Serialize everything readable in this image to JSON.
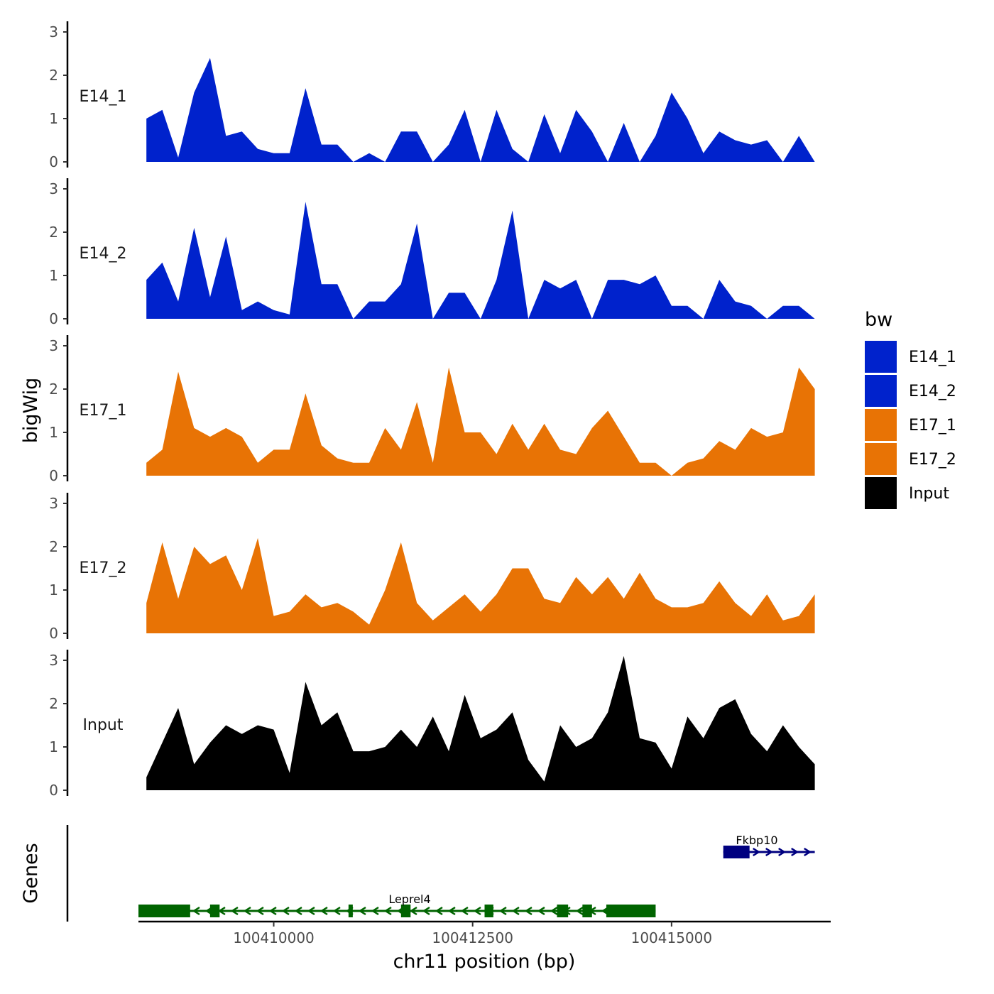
{
  "chart_data": {
    "type": "area",
    "title": "",
    "xlabel": "chr11 position (bp)",
    "ylabel": "bigWig",
    "xlim": [
      100408300,
      100417000
    ],
    "ylim": [
      0,
      3
    ],
    "x_ticks": [
      100410000,
      100412500,
      100415000
    ],
    "x_tick_labels": [
      "100410000",
      "100412500",
      "100415000"
    ],
    "y_ticks": [
      0,
      1,
      2,
      3
    ],
    "y_tick_labels": [
      "0",
      "1",
      "2",
      "3"
    ],
    "grid": false,
    "legend": {
      "title": "bw",
      "position": "right",
      "entries": [
        {
          "label": "E14_1",
          "color": "#0022cc"
        },
        {
          "label": "E14_2",
          "color": "#0022cc"
        },
        {
          "label": "E17_1",
          "color": "#e87305"
        },
        {
          "label": "E17_2",
          "color": "#e87305"
        },
        {
          "label": "Input",
          "color": "#000000"
        }
      ]
    },
    "x": [
      100408400,
      100408600,
      100408800,
      100409000,
      100409200,
      100409400,
      100409600,
      100409800,
      100410000,
      100410200,
      100410400,
      100410600,
      100410800,
      100411000,
      100411200,
      100411400,
      100411600,
      100411800,
      100412000,
      100412200,
      100412400,
      100412600,
      100412800,
      100413000,
      100413200,
      100413400,
      100413600,
      100413800,
      100414000,
      100414200,
      100414400,
      100414600,
      100414800,
      100415000,
      100415200,
      100415400,
      100415600,
      100415800,
      100416000,
      100416200,
      100416400,
      100416600,
      100416800
    ],
    "series": [
      {
        "name": "E14_1",
        "color": "#0022cc",
        "values": [
          1.0,
          1.2,
          0.1,
          1.6,
          2.4,
          0.6,
          0.7,
          0.3,
          0.2,
          0.2,
          1.7,
          0.4,
          0.4,
          0.0,
          0.2,
          0.0,
          0.7,
          0.7,
          0.0,
          0.4,
          1.2,
          0.0,
          1.2,
          0.3,
          0.0,
          1.1,
          0.2,
          1.2,
          0.7,
          0.0,
          0.9,
          0.0,
          0.6,
          1.6,
          1.0,
          0.2,
          0.7,
          0.5,
          0.4,
          0.5,
          0.0,
          0.6,
          0.0
        ]
      },
      {
        "name": "E14_2",
        "color": "#0022cc",
        "values": [
          0.9,
          1.3,
          0.4,
          2.1,
          0.5,
          1.9,
          0.2,
          0.4,
          0.2,
          0.1,
          2.7,
          0.8,
          0.8,
          0.0,
          0.4,
          0.4,
          0.8,
          2.2,
          0.0,
          0.6,
          0.6,
          0.0,
          0.9,
          2.5,
          0.0,
          0.9,
          0.7,
          0.9,
          0.0,
          0.9,
          0.9,
          0.8,
          1.0,
          0.3,
          0.3,
          0.0,
          0.9,
          0.4,
          0.3,
          0.0,
          0.3,
          0.3,
          0.0
        ]
      },
      {
        "name": "E17_1",
        "color": "#e87305",
        "values": [
          0.3,
          0.6,
          2.4,
          1.1,
          0.9,
          1.1,
          0.9,
          0.3,
          0.6,
          0.6,
          1.9,
          0.7,
          0.4,
          0.3,
          0.3,
          1.1,
          0.6,
          1.7,
          0.3,
          2.5,
          1.0,
          1.0,
          0.5,
          1.2,
          0.6,
          1.2,
          0.6,
          0.5,
          1.1,
          1.5,
          0.9,
          0.3,
          0.3,
          0.0,
          0.3,
          0.4,
          0.8,
          0.6,
          1.1,
          0.9,
          1.0,
          2.5,
          2.0
        ]
      },
      {
        "name": "E17_2",
        "color": "#e87305",
        "values": [
          0.7,
          2.1,
          0.8,
          2.0,
          1.6,
          1.8,
          1.0,
          2.2,
          0.4,
          0.5,
          0.9,
          0.6,
          0.7,
          0.5,
          0.2,
          1.0,
          2.1,
          0.7,
          0.3,
          0.6,
          0.9,
          0.5,
          0.9,
          1.5,
          1.5,
          0.8,
          0.7,
          1.3,
          0.9,
          1.3,
          0.8,
          1.4,
          0.8,
          0.6,
          0.6,
          0.7,
          1.2,
          0.7,
          0.4,
          0.9,
          0.3,
          0.4,
          0.9
        ]
      },
      {
        "name": "Input",
        "color": "#000000",
        "values": [
          0.3,
          1.1,
          1.9,
          0.6,
          1.1,
          1.5,
          1.3,
          1.5,
          1.4,
          0.4,
          2.5,
          1.5,
          1.8,
          0.9,
          0.9,
          1.0,
          1.4,
          1.0,
          1.7,
          0.9,
          2.2,
          1.2,
          1.4,
          1.8,
          0.7,
          0.2,
          1.5,
          1.0,
          1.2,
          1.8,
          3.1,
          1.2,
          1.1,
          0.5,
          1.7,
          1.2,
          1.9,
          2.1,
          1.3,
          0.9,
          1.5,
          1.0,
          0.6
        ]
      }
    ],
    "genes": [
      {
        "name": "Leprel4",
        "start": 100408300,
        "end": 100414800,
        "strand": "-",
        "color": "#006400",
        "exons": [
          [
            100408300,
            100408950
          ],
          [
            100409200,
            100409320
          ],
          [
            100410940,
            100410990
          ],
          [
            100411600,
            100411720
          ],
          [
            100412650,
            100412760
          ],
          [
            100413560,
            100413700
          ],
          [
            100413880,
            100414000
          ],
          [
            100414180,
            100414800
          ]
        ]
      },
      {
        "name": "Fkbp10",
        "start": 100415650,
        "end": 100416800,
        "strand": "+",
        "color": "#000080",
        "exons": [
          [
            100415650,
            100415980
          ]
        ]
      }
    ],
    "gene_track_label": "Genes"
  }
}
